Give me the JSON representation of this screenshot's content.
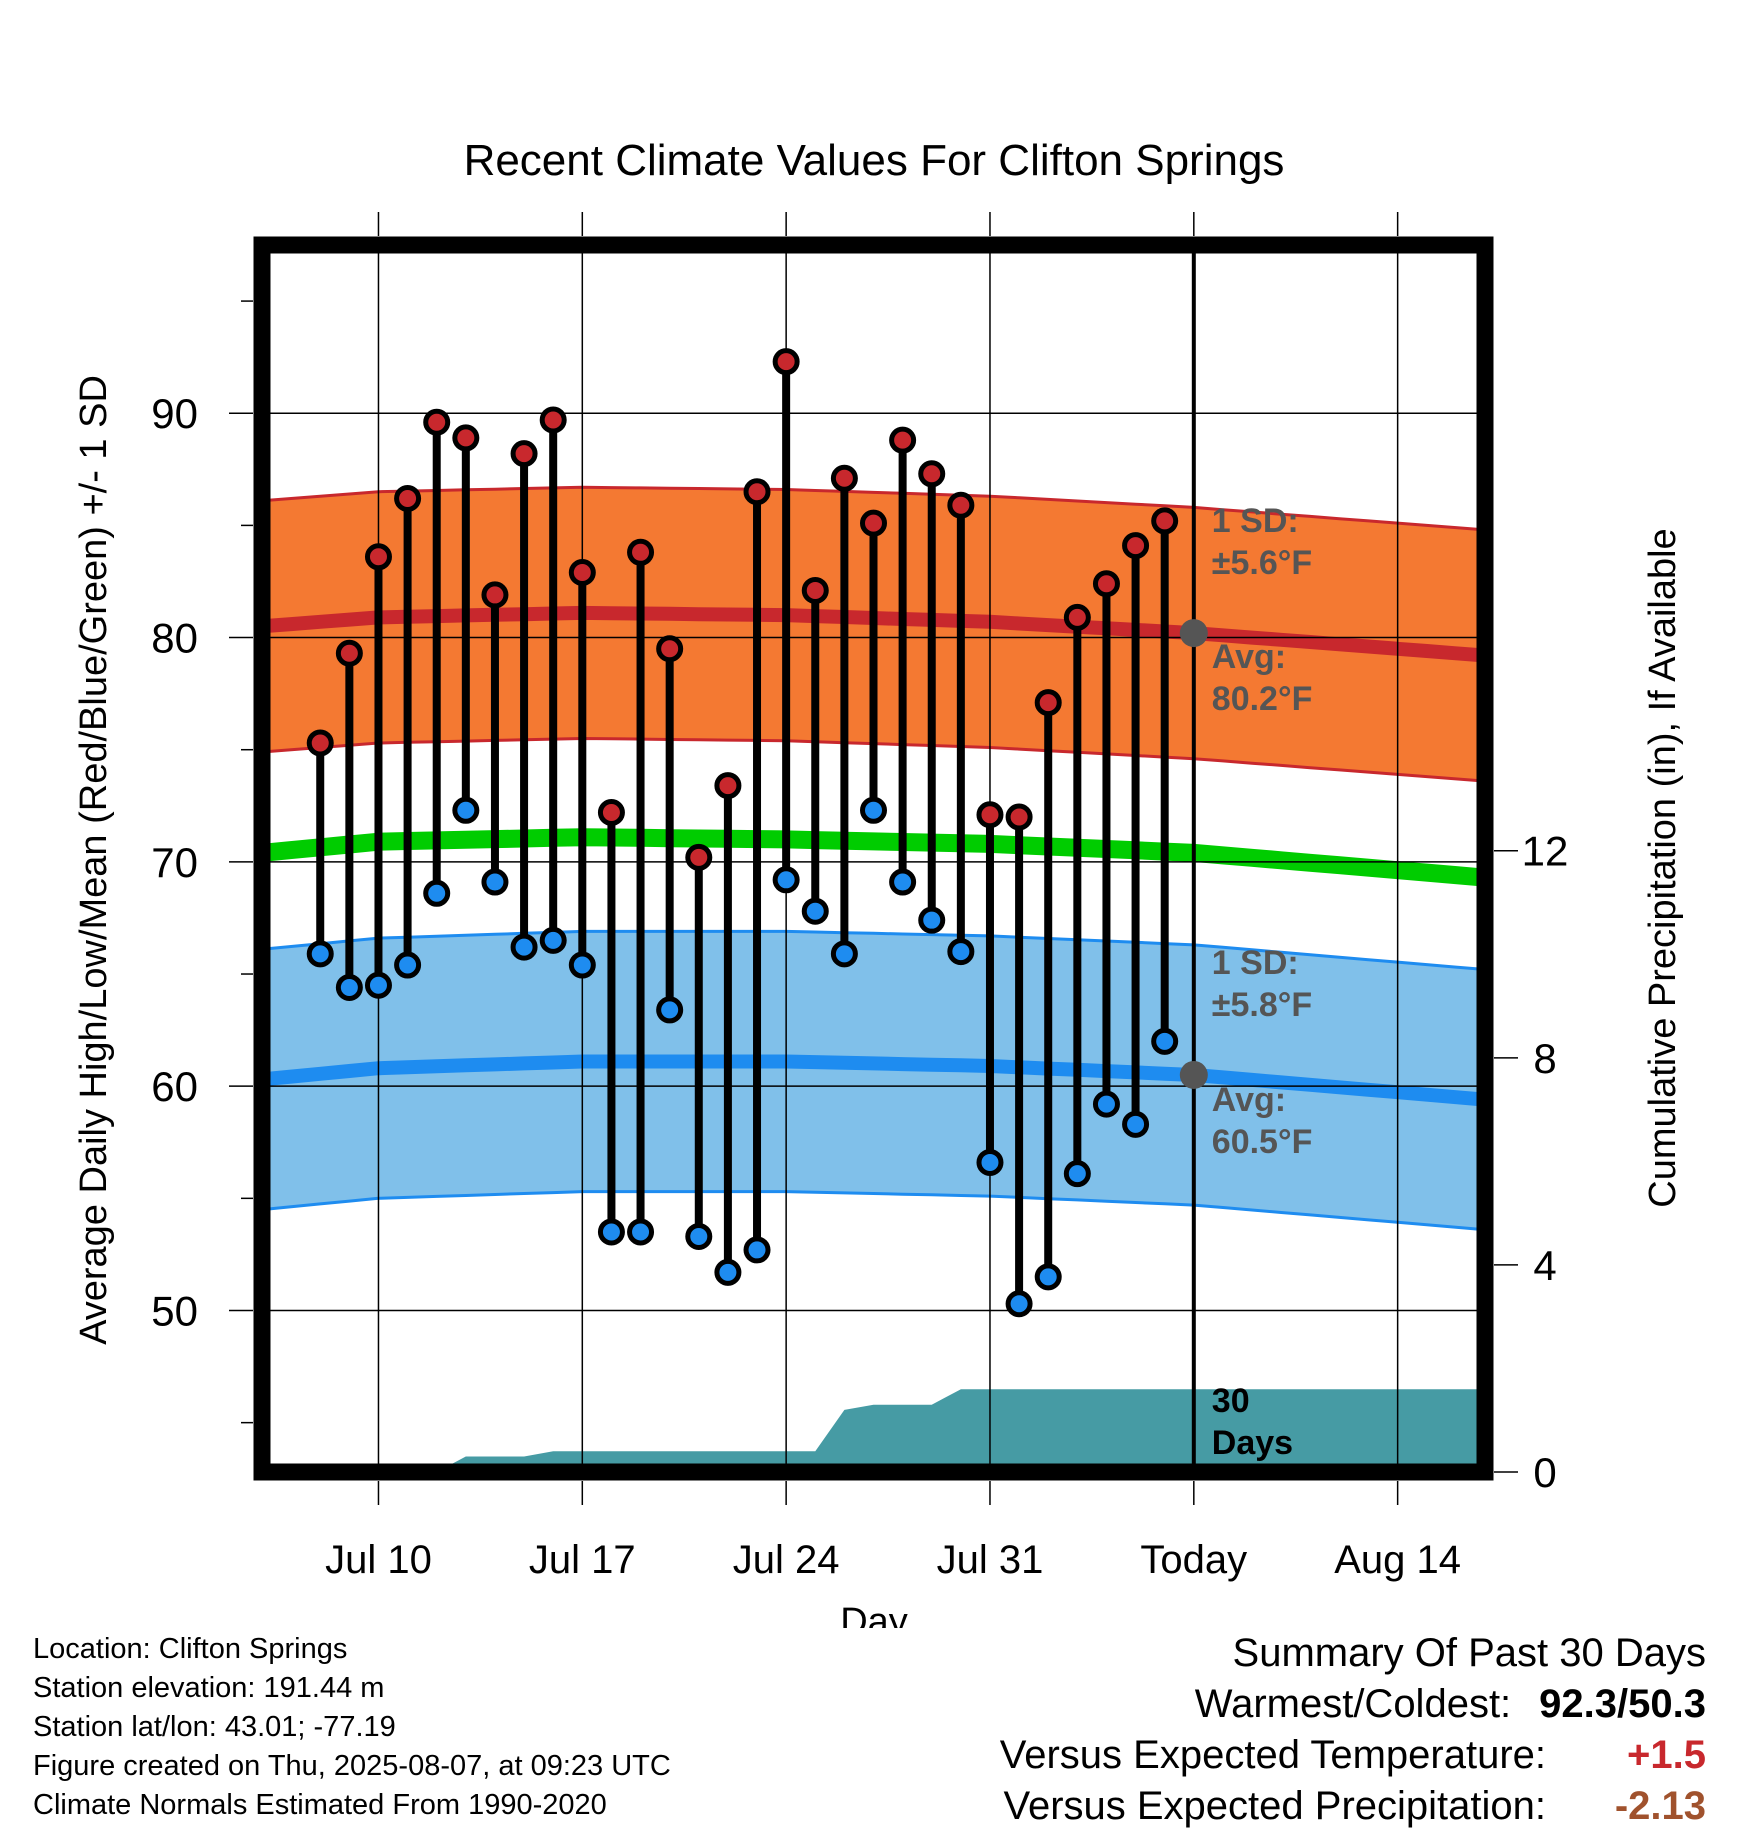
{
  "chart_data": {
    "type": "line",
    "title": "Recent Climate Values For Clifton Springs",
    "xlabel": "Day",
    "ylabel": "Average Daily High/Low/Mean (Red/Blue/Green) +/- 1 SD",
    "y2label": "Cumulative Precipitation (in), If Available",
    "xlim": [
      "2025-07-06",
      "2025-08-17"
    ],
    "x_ticks": [
      {
        "date": "2025-07-10",
        "label": "Jul 10"
      },
      {
        "date": "2025-07-17",
        "label": "Jul 17"
      },
      {
        "date": "2025-07-24",
        "label": "Jul 24"
      },
      {
        "date": "2025-07-31",
        "label": "Jul 31"
      },
      {
        "date": "2025-08-07",
        "label": "Today"
      },
      {
        "date": "2025-08-14",
        "label": "Aug 14"
      }
    ],
    "ylim": [
      42.8,
      97.5
    ],
    "y_ticks": [
      50,
      60,
      70,
      80,
      90
    ],
    "y2lim": [
      0,
      23.7
    ],
    "y2_ticks": [
      0,
      4,
      8,
      12
    ],
    "grid": true,
    "today": "2025-08-07",
    "series": [
      {
        "name": "High",
        "color": "#c8282d",
        "dates": [
          "2025-07-08",
          "2025-07-09",
          "2025-07-10",
          "2025-07-11",
          "2025-07-12",
          "2025-07-13",
          "2025-07-14",
          "2025-07-15",
          "2025-07-16",
          "2025-07-17",
          "2025-07-18",
          "2025-07-19",
          "2025-07-20",
          "2025-07-21",
          "2025-07-22",
          "2025-07-23",
          "2025-07-24",
          "2025-07-25",
          "2025-07-26",
          "2025-07-27",
          "2025-07-28",
          "2025-07-29",
          "2025-07-30",
          "2025-07-31",
          "2025-08-01",
          "2025-08-02",
          "2025-08-03",
          "2025-08-04",
          "2025-08-05",
          "2025-08-06"
        ],
        "values": [
          75.3,
          79.3,
          83.6,
          86.2,
          89.6,
          88.9,
          81.9,
          88.2,
          89.7,
          82.9,
          72.2,
          83.8,
          79.5,
          70.2,
          73.4,
          86.5,
          92.3,
          82.1,
          87.1,
          85.1,
          88.8,
          87.3,
          85.9,
          72.1,
          72.0,
          77.1,
          80.9,
          82.4,
          84.1,
          85.2
        ]
      },
      {
        "name": "Low",
        "color": "#1e8cf0",
        "dates": [
          "2025-07-08",
          "2025-07-09",
          "2025-07-10",
          "2025-07-11",
          "2025-07-12",
          "2025-07-13",
          "2025-07-14",
          "2025-07-15",
          "2025-07-16",
          "2025-07-17",
          "2025-07-18",
          "2025-07-19",
          "2025-07-20",
          "2025-07-21",
          "2025-07-22",
          "2025-07-23",
          "2025-07-24",
          "2025-07-25",
          "2025-07-26",
          "2025-07-27",
          "2025-07-28",
          "2025-07-29",
          "2025-07-30",
          "2025-07-31",
          "2025-08-01",
          "2025-08-02",
          "2025-08-03",
          "2025-08-04",
          "2025-08-05",
          "2025-08-06"
        ],
        "values": [
          65.9,
          64.4,
          64.5,
          65.4,
          68.6,
          72.3,
          69.1,
          66.2,
          66.5,
          65.4,
          53.5,
          53.5,
          63.4,
          53.3,
          51.7,
          52.7,
          69.2,
          67.8,
          65.9,
          72.3,
          69.1,
          67.4,
          66.0,
          56.6,
          50.3,
          51.5,
          56.1,
          59.2,
          58.3,
          62.0
        ]
      },
      {
        "name": "Normal High",
        "color": "#c8282d",
        "band_color": "#f47932",
        "sd": 5.6,
        "dates": [
          "2025-07-06",
          "2025-07-10",
          "2025-07-17",
          "2025-07-24",
          "2025-07-31",
          "2025-08-07",
          "2025-08-17"
        ],
        "values": [
          80.5,
          80.9,
          81.1,
          81.0,
          80.7,
          80.2,
          79.2
        ]
      },
      {
        "name": "Normal Low",
        "color": "#1e8cf0",
        "band_color": "#80c0ea",
        "sd": 5.8,
        "dates": [
          "2025-07-06",
          "2025-07-10",
          "2025-07-17",
          "2025-07-24",
          "2025-07-31",
          "2025-08-07",
          "2025-08-17"
        ],
        "values": [
          60.3,
          60.8,
          61.1,
          61.1,
          60.9,
          60.5,
          59.4
        ]
      },
      {
        "name": "Normal Mean",
        "color": "#00cc00",
        "dates": [
          "2025-07-06",
          "2025-07-10",
          "2025-07-17",
          "2025-07-24",
          "2025-07-31",
          "2025-08-07",
          "2025-08-17"
        ],
        "values": [
          70.4,
          70.9,
          71.1,
          71.0,
          70.8,
          70.4,
          69.3
        ]
      },
      {
        "name": "Cumulative Precipitation",
        "axis": "y2",
        "color": "#469ba4",
        "dates": [
          "2025-07-11",
          "2025-07-12",
          "2025-07-13",
          "2025-07-14",
          "2025-07-15",
          "2025-07-16",
          "2025-07-17",
          "2025-07-18",
          "2025-07-19",
          "2025-07-20",
          "2025-07-21",
          "2025-07-22",
          "2025-07-23",
          "2025-07-24",
          "2025-07-25",
          "2025-07-26",
          "2025-07-27",
          "2025-07-28",
          "2025-07-29",
          "2025-07-30",
          "2025-07-31",
          "2025-08-01",
          "2025-08-02",
          "2025-08-03",
          "2025-08-04",
          "2025-08-05",
          "2025-08-06",
          "2025-08-07",
          "2025-08-17"
        ],
        "values": [
          0,
          0,
          0.3,
          0.3,
          0.3,
          0.4,
          0.4,
          0.4,
          0.4,
          0.4,
          0.4,
          0.4,
          0.4,
          0.4,
          0.4,
          1.2,
          1.3,
          1.3,
          1.3,
          1.6,
          1.6,
          1.6,
          1.6,
          1.6,
          1.6,
          1.6,
          1.6,
          1.6,
          1.6
        ]
      }
    ],
    "annotations": {
      "high_sd_label": [
        "1 SD:",
        "±5.6°F"
      ],
      "high_avg_label": [
        "Avg:",
        "80.2°F"
      ],
      "high_avg_value": 80.2,
      "low_sd_label": [
        "1 SD:",
        "±5.8°F"
      ],
      "low_avg_label": [
        "Avg:",
        "60.5°F"
      ],
      "low_avg_value": 60.5,
      "precip_label": [
        "30",
        "Days"
      ]
    }
  },
  "info": {
    "location": "Location: Clifton Springs",
    "elevation": "Station elevation: 191.44 m",
    "latlon": "Station lat/lon: 43.01; -77.19",
    "created": "Figure created on Thu, 2025-08-07, at 09:23 UTC",
    "normals": "Climate Normals Estimated From 1990-2020"
  },
  "summary": {
    "title": "Summary Of Past 30 Days",
    "warm_cold_label": "Warmest/Coldest:",
    "warm_cold_value": "92.3/50.3",
    "temp_label": "Versus Expected Temperature:",
    "temp_value": "+1.5",
    "temp_color": "#c8282d",
    "precip_label": "Versus Expected Precipitation:",
    "precip_value": "-2.13",
    "precip_color": "#a0522d"
  }
}
